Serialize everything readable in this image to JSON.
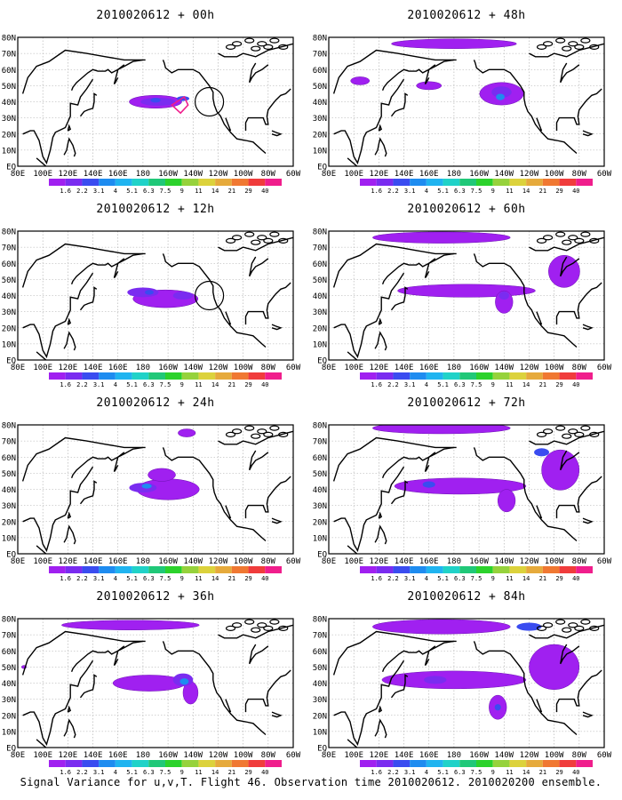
{
  "figure": {
    "caption": "Signal Variance for u,v,T. Flight 46. Observation time 2010020612. 2010020200 ensemble.",
    "lon_labels": [
      "80E",
      "100E",
      "120E",
      "140E",
      "160E",
      "180",
      "160W",
      "140W",
      "120W",
      "100W",
      "80W",
      "60W"
    ],
    "lat_labels": [
      "80N",
      "70N",
      "60N",
      "50N",
      "40N",
      "30N",
      "20N",
      "10N",
      "EQ"
    ],
    "colorbar": {
      "labels": [
        "1.6",
        "2.2",
        "3.1",
        "4",
        "5.1",
        "6.3",
        "7.5",
        "9",
        "11",
        "14",
        "21",
        "29",
        "40"
      ],
      "colors": [
        "#a020f0",
        "#7a2cf0",
        "#3a4cf0",
        "#1e8cf0",
        "#20b4f0",
        "#20d2c8",
        "#20c878",
        "#2cd22c",
        "#96d23c",
        "#dcd23c",
        "#e6aa3c",
        "#f07832",
        "#f03c3c",
        "#f01e8c"
      ]
    },
    "panels": [
      {
        "title": "2010020612 + 00h",
        "circle": true,
        "blobs": [
          {
            "lon": 190,
            "lat": 40,
            "w": 42,
            "h": 8,
            "level": 0
          },
          {
            "lon": 192,
            "lat": 40,
            "w": 28,
            "h": 5,
            "level": 1
          },
          {
            "lon": 190,
            "lat": 41,
            "w": 8,
            "h": 3,
            "level": 2
          },
          {
            "lon": 212,
            "lat": 42,
            "w": 10,
            "h": 3,
            "level": 2
          }
        ]
      },
      {
        "title": "2010020612 + 12h",
        "circle": true,
        "blobs": [
          {
            "lon": 198,
            "lat": 38,
            "w": 52,
            "h": 11,
            "level": 0
          },
          {
            "lon": 180,
            "lat": 42,
            "w": 25,
            "h": 6,
            "level": 1
          },
          {
            "lon": 212,
            "lat": 40,
            "w": 16,
            "h": 5,
            "level": 1
          },
          {
            "lon": 185,
            "lat": 42,
            "w": 7,
            "h": 3,
            "level": 2
          }
        ]
      },
      {
        "title": "2010020612 + 24h",
        "circle": false,
        "blobs": [
          {
            "lon": 200,
            "lat": 40,
            "w": 50,
            "h": 13,
            "level": 0
          },
          {
            "lon": 195,
            "lat": 49,
            "w": 22,
            "h": 8,
            "level": 0
          },
          {
            "lon": 215,
            "lat": 75,
            "w": 14,
            "h": 5,
            "level": 0
          },
          {
            "lon": 180,
            "lat": 41,
            "w": 22,
            "h": 6,
            "level": 1
          },
          {
            "lon": 183,
            "lat": 42,
            "w": 8,
            "h": 3,
            "level": 3
          }
        ]
      },
      {
        "title": "2010020612 + 36h",
        "circle": false,
        "blobs": [
          {
            "lon": 170,
            "lat": 76,
            "w": 110,
            "h": 6,
            "level": 0
          },
          {
            "lon": 185,
            "lat": 40,
            "w": 58,
            "h": 10,
            "level": 0
          },
          {
            "lon": 218,
            "lat": 34,
            "w": 12,
            "h": 14,
            "level": 0
          },
          {
            "lon": 85,
            "lat": 50,
            "w": 4,
            "h": 2,
            "level": 0
          },
          {
            "lon": 212,
            "lat": 42,
            "w": 16,
            "h": 8,
            "level": 1
          },
          {
            "lon": 213,
            "lat": 41,
            "w": 7,
            "h": 4,
            "level": 3
          }
        ]
      },
      {
        "title": "2010020612 + 48h",
        "circle": false,
        "blobs": [
          {
            "lon": 180,
            "lat": 76,
            "w": 100,
            "h": 6,
            "level": 0
          },
          {
            "lon": 218,
            "lat": 45,
            "w": 35,
            "h": 14,
            "level": 0
          },
          {
            "lon": 105,
            "lat": 53,
            "w": 15,
            "h": 5,
            "level": 0
          },
          {
            "lon": 160,
            "lat": 50,
            "w": 20,
            "h": 5,
            "level": 0
          },
          {
            "lon": 218,
            "lat": 46,
            "w": 16,
            "h": 7,
            "level": 1
          },
          {
            "lon": 217,
            "lat": 43,
            "w": 7,
            "h": 4,
            "level": 3
          }
        ]
      },
      {
        "title": "2010020612 + 60h",
        "circle": false,
        "blobs": [
          {
            "lon": 170,
            "lat": 76,
            "w": 110,
            "h": 7,
            "level": 0
          },
          {
            "lon": 190,
            "lat": 43,
            "w": 110,
            "h": 8,
            "level": 0
          },
          {
            "lon": 220,
            "lat": 36,
            "w": 14,
            "h": 14,
            "level": 0
          },
          {
            "lon": 268,
            "lat": 55,
            "w": 25,
            "h": 20,
            "level": 0
          },
          {
            "lon": 220,
            "lat": 40,
            "w": 8,
            "h": 5,
            "level": 1
          }
        ]
      },
      {
        "title": "2010020612 + 72h",
        "circle": false,
        "blobs": [
          {
            "lon": 170,
            "lat": 78,
            "w": 110,
            "h": 7,
            "level": 0
          },
          {
            "lon": 185,
            "lat": 42,
            "w": 105,
            "h": 10,
            "level": 0
          },
          {
            "lon": 265,
            "lat": 52,
            "w": 30,
            "h": 25,
            "level": 0
          },
          {
            "lon": 222,
            "lat": 33,
            "w": 14,
            "h": 14,
            "level": 0
          },
          {
            "lon": 160,
            "lat": 43,
            "w": 10,
            "h": 4,
            "level": 2
          },
          {
            "lon": 250,
            "lat": 63,
            "w": 12,
            "h": 5,
            "level": 2
          }
        ]
      },
      {
        "title": "2010020612 + 84h",
        "circle": false,
        "blobs": [
          {
            "lon": 170,
            "lat": 75,
            "w": 110,
            "h": 9,
            "level": 0
          },
          {
            "lon": 180,
            "lat": 42,
            "w": 115,
            "h": 11,
            "level": 0
          },
          {
            "lon": 260,
            "lat": 50,
            "w": 40,
            "h": 28,
            "level": 0
          },
          {
            "lon": 215,
            "lat": 25,
            "w": 14,
            "h": 15,
            "level": 0
          },
          {
            "lon": 165,
            "lat": 42,
            "w": 18,
            "h": 5,
            "level": 1
          },
          {
            "lon": 240,
            "lat": 75,
            "w": 20,
            "h": 5,
            "level": 2
          },
          {
            "lon": 215,
            "lat": 25,
            "w": 5,
            "h": 4,
            "level": 2
          }
        ]
      }
    ]
  }
}
